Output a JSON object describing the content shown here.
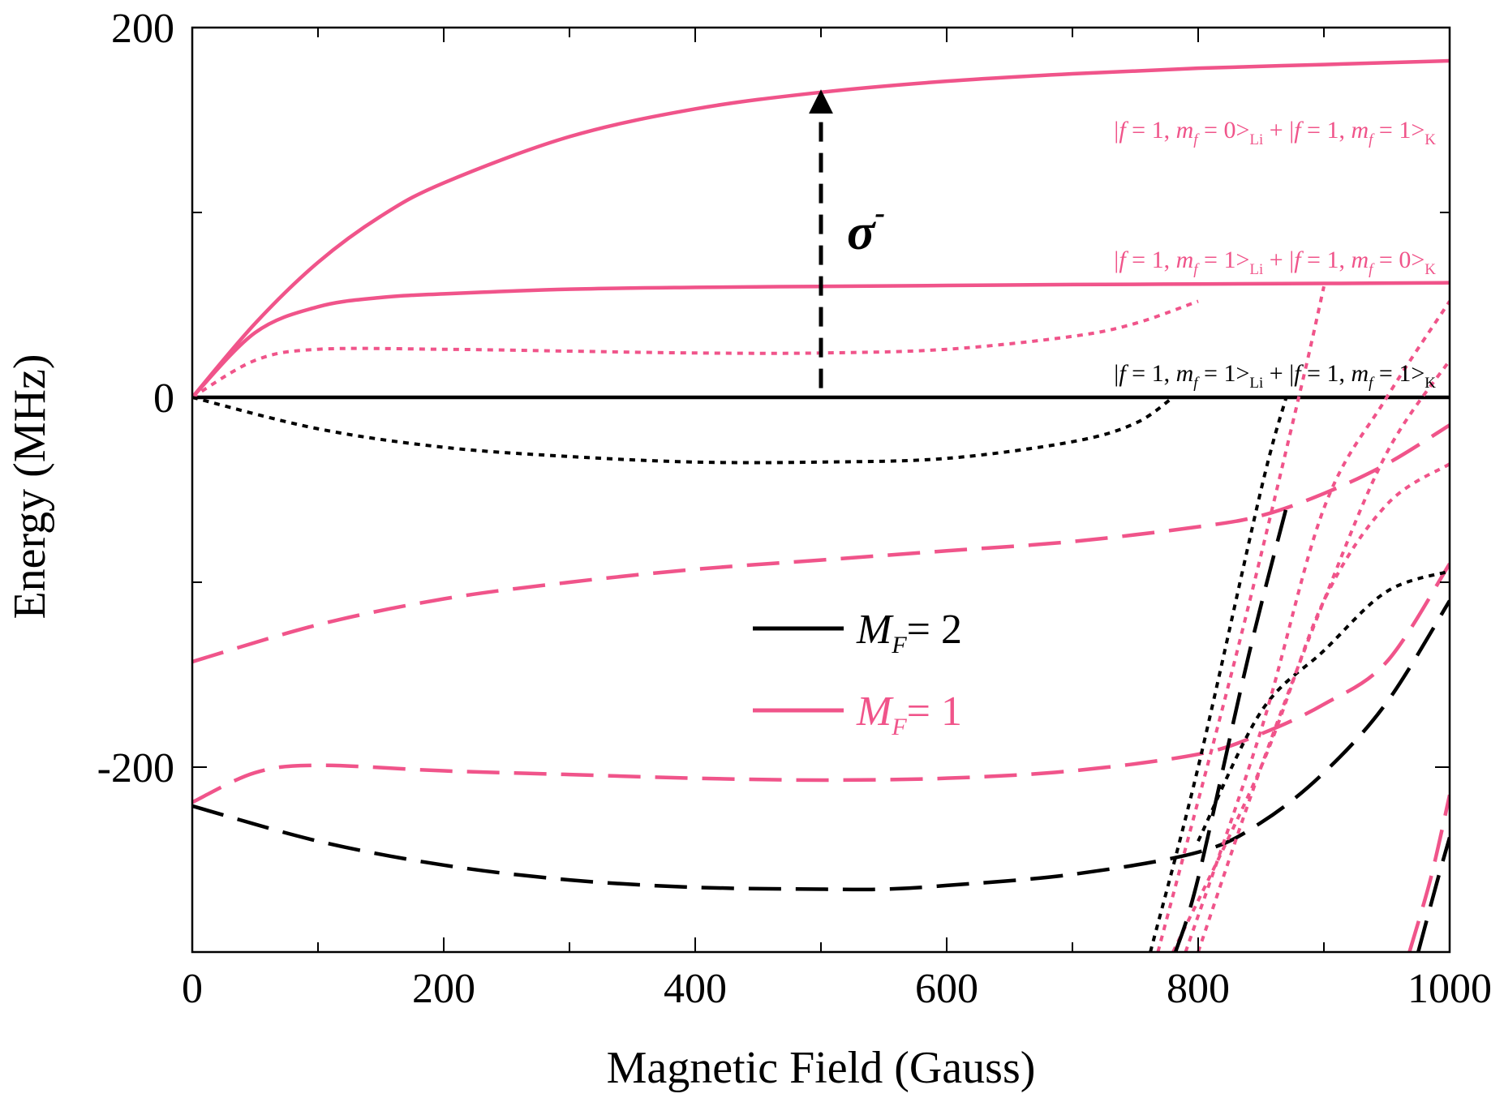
{
  "chart_data": {
    "type": "line",
    "title": "",
    "xlabel": "Magnetic Field (Gauss)",
    "ylabel": "Energy (MHz)",
    "xlim": [
      0,
      1000
    ],
    "ylim": [
      -300,
      200
    ],
    "x_ticks": [
      0,
      200,
      400,
      600,
      800,
      1000
    ],
    "x_tick_labels": [
      "0",
      "200",
      "400",
      "600",
      "800",
      "1000"
    ],
    "y_ticks": [
      -200,
      0,
      200
    ],
    "y_tick_labels": [
      "-200",
      "0",
      "200"
    ],
    "grid": false,
    "legend": {
      "location": "center",
      "entries": [
        {
          "label": "M",
          "sub": "F",
          "suffix": "= 2",
          "color": "#000000"
        },
        {
          "label": "M",
          "sub": "F",
          "suffix": "= 1",
          "color": "#f0548a"
        }
      ]
    },
    "colors": {
      "MF2": "#000000",
      "MF1": "#f0548a"
    },
    "series": [
      {
        "name": "MF1 solid upper",
        "group": "MF1",
        "style": "solid",
        "x": [
          0,
          50,
          100,
          150,
          200,
          300,
          400,
          500,
          600,
          700,
          800,
          900,
          1000
        ],
        "y": [
          0,
          40,
          73,
          98,
          116,
          141,
          156,
          165,
          171,
          175,
          178,
          180,
          182
        ]
      },
      {
        "name": "MF1 solid middle",
        "group": "MF1",
        "style": "solid",
        "x": [
          0,
          50,
          100,
          150,
          200,
          300,
          400,
          500,
          600,
          700,
          800,
          900,
          1000
        ],
        "y": [
          0,
          35,
          49,
          54,
          56,
          58.5,
          59.5,
          60,
          60.5,
          61,
          61.3,
          61.6,
          62
        ]
      },
      {
        "name": "MF2 solid",
        "group": "MF2",
        "style": "solid",
        "x": [
          0,
          1000
        ],
        "y": [
          0,
          0
        ]
      },
      {
        "name": "MF1 dotted A",
        "group": "MF1",
        "style": "dotted",
        "x": [
          0,
          50,
          100,
          200,
          300,
          400,
          500,
          600,
          700,
          750,
          800
        ],
        "y": [
          0,
          20,
          26,
          26,
          25,
          24,
          24,
          26,
          33,
          40,
          52
        ]
      },
      {
        "name": "MF2 dotted A",
        "group": "MF2",
        "style": "dotted",
        "x": [
          0,
          100,
          200,
          300,
          400,
          500,
          600,
          700,
          750,
          780
        ],
        "y": [
          0,
          -17,
          -27,
          -32,
          -35,
          -35,
          -33,
          -24,
          -14,
          0
        ]
      },
      {
        "name": "MF1 long dash upper",
        "group": "MF1",
        "style": "dash",
        "x": [
          0,
          100,
          200,
          300,
          400,
          500,
          600,
          700,
          800,
          850,
          900,
          950,
          1000
        ],
        "y": [
          -143,
          -123,
          -109,
          -100,
          -93,
          -88,
          -83,
          -78,
          -70,
          -64,
          -52,
          -36,
          -15
        ]
      },
      {
        "name": "MF1 long dash lower",
        "group": "MF1",
        "style": "dash",
        "x": [
          0,
          50,
          100,
          200,
          300,
          400,
          500,
          600,
          700,
          800,
          850,
          900,
          950,
          1000
        ],
        "y": [
          -219,
          -203,
          -199,
          -202,
          -204,
          -206,
          -207,
          -206,
          -202,
          -193,
          -182,
          -166,
          -143,
          -90
        ]
      },
      {
        "name": "MF2 long dash",
        "group": "MF2",
        "style": "dash",
        "x": [
          0,
          100,
          200,
          300,
          400,
          500,
          550,
          600,
          700,
          800,
          850,
          900,
          950,
          1000
        ],
        "y": [
          -221,
          -240,
          -253,
          -261,
          -265,
          -266,
          -266,
          -264,
          -258,
          -246,
          -230,
          -203,
          -165,
          -110
        ]
      },
      {
        "name": "MF2 dotted B",
        "group": "MF2",
        "style": "dotted",
        "x": [
          800,
          850,
          900,
          950,
          1000
        ],
        "y": [
          -240,
          -170,
          -137,
          -105,
          -94
        ]
      },
      {
        "name": "MF2 dotted steep",
        "group": "MF2",
        "style": "dotted",
        "x": [
          762,
          800,
          850,
          870
        ],
        "y": [
          -300,
          -200,
          -50,
          0
        ]
      },
      {
        "name": "MF1 dotted steep 1",
        "group": "MF1",
        "style": "dotted",
        "x": [
          768,
          830,
          880,
          900
        ],
        "y": [
          -300,
          -140,
          0,
          60
        ]
      },
      {
        "name": "MF1 dotted steep 2",
        "group": "MF1",
        "style": "dotted",
        "x": [
          790,
          850,
          900,
          950,
          1000
        ],
        "y": [
          -300,
          -180,
          -60,
          0,
          52
        ]
      },
      {
        "name": "MF1 dotted steep 3",
        "group": "MF1",
        "style": "dotted",
        "x": [
          800,
          850,
          900,
          950,
          1000
        ],
        "y": [
          -300,
          -200,
          -110,
          -30,
          20
        ]
      },
      {
        "name": "MF1 dotted C",
        "group": "MF1",
        "style": "dotted",
        "x": [
          780,
          850,
          900,
          950,
          1000
        ],
        "y": [
          -300,
          -200,
          -110,
          -58,
          -36
        ]
      },
      {
        "name": "MF2 long dash steep",
        "group": "MF2",
        "style": "dash",
        "x": [
          782,
          800,
          840,
          870
        ],
        "y": [
          -300,
          -260,
          -140,
          -60
        ]
      },
      {
        "name": "MF1 long dash steep right",
        "group": "MF1",
        "style": "dash",
        "x": [
          968,
          985,
          1000
        ],
        "y": [
          -300,
          -260,
          -215
        ]
      },
      {
        "name": "MF2 long dash steep right",
        "group": "MF2",
        "style": "dash",
        "x": [
          975,
          990,
          1000
        ],
        "y": [
          -300,
          -262,
          -238
        ]
      }
    ],
    "annotations": [
      {
        "id": "ann1",
        "color": "#f0548a",
        "text": "| f = 1, m_f = 0 >_Li + | f = 1, m_f = 1 >_K"
      },
      {
        "id": "ann2",
        "color": "#f0548a",
        "text": "| f = 1, m_f = 1 >_Li + | f = 1, m_f = 0 >_K"
      },
      {
        "id": "ann3",
        "color": "#000000",
        "text": "| f = 1, m_f = 1 >_Li + | f = 1, m_f = 1 >_K"
      }
    ],
    "arrow": {
      "label": "σ",
      "sup": "-",
      "x": 500,
      "y_from": 5,
      "y_to": 160,
      "style": "dash"
    }
  },
  "labels": {
    "ann_bar": "|",
    "ann_f": "f",
    "ann_eq1": " = 1, ",
    "ann_m": "m",
    "ann_sub_f": "f",
    "ann_eq0": " = 0>",
    "ann_eq1b": " = 1>",
    "ann_li": "Li",
    "ann_plus": " + ",
    "ann_k": "K"
  }
}
